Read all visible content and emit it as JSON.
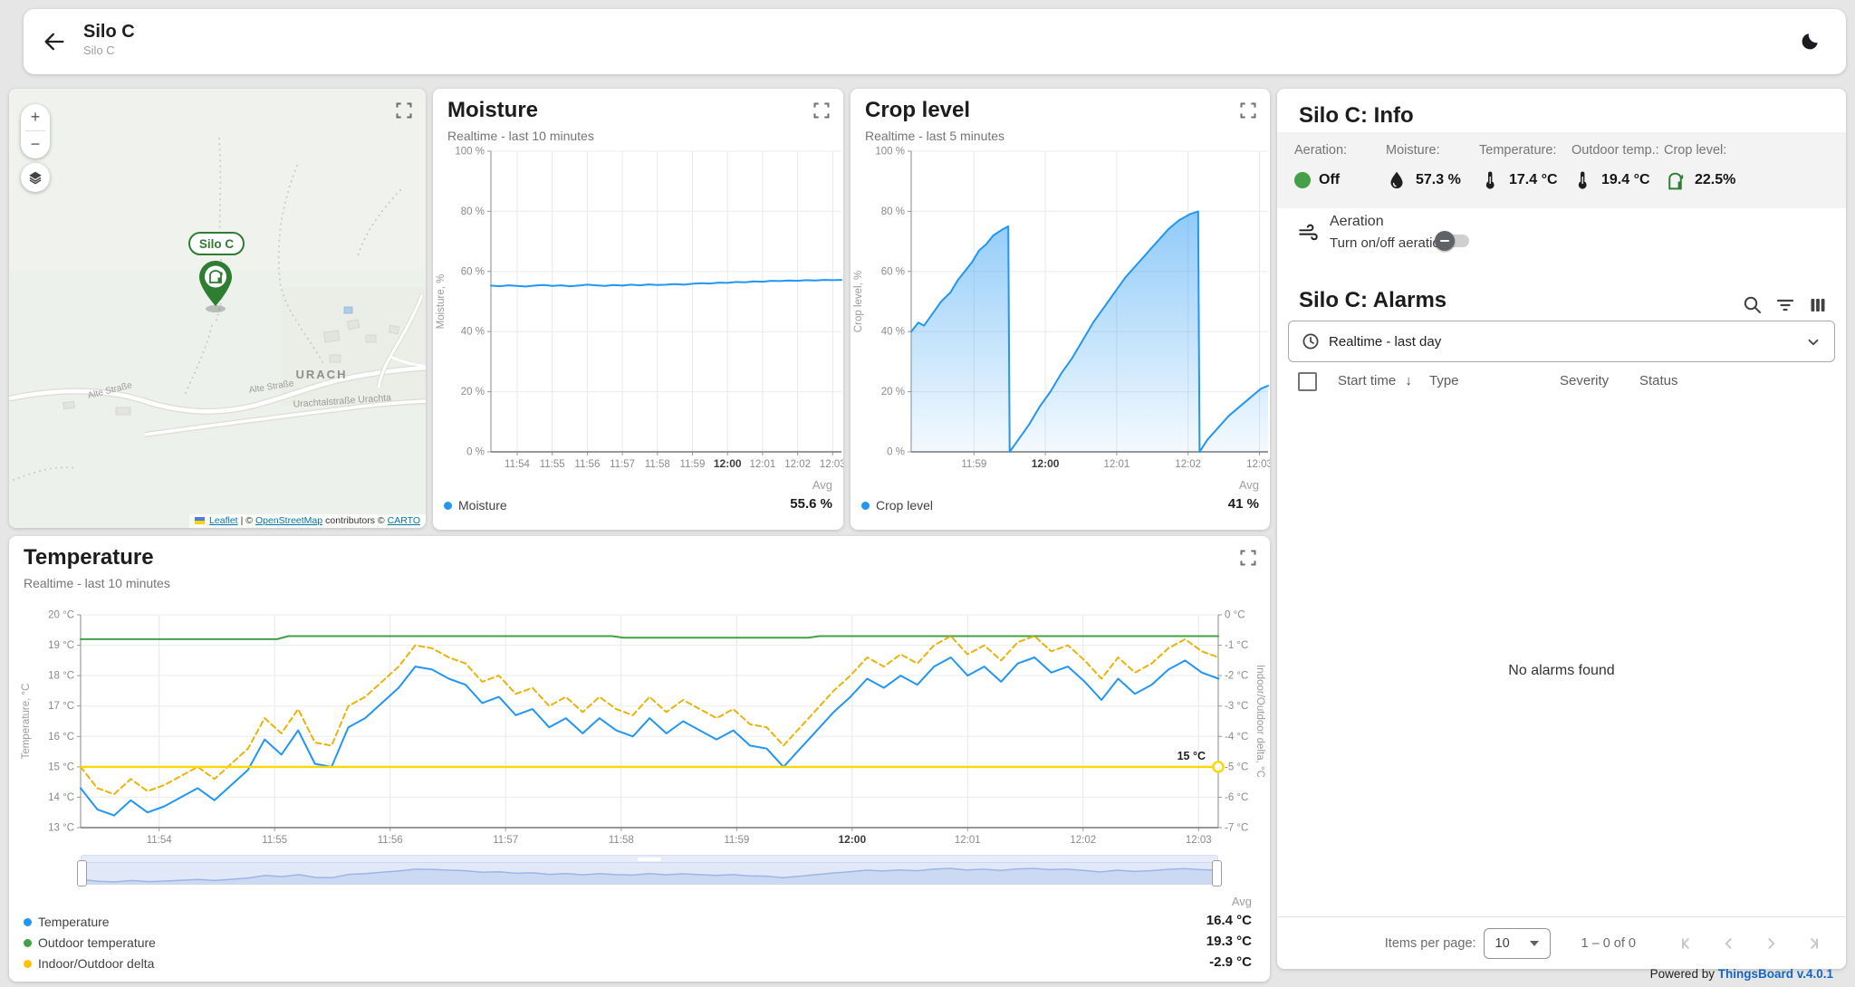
{
  "header": {
    "title": "Silo C",
    "subtitle": "Silo C"
  },
  "map": {
    "pill": "Silo C",
    "zoom_in": "+",
    "zoom_out": "−",
    "attribution": {
      "leaflet": "Leaflet",
      "sep1": " | © ",
      "osm": "OpenStreetMap",
      "sep2": " contributors © ",
      "carto": "CARTO"
    },
    "labels": [
      {
        "text": "URACH"
      },
      {
        "text": "Alte Straße"
      },
      {
        "text": "Alte Straße"
      },
      {
        "text": "Urachtalstraße  Urachta"
      }
    ]
  },
  "widgets": {
    "moisture": {
      "title": "Moisture",
      "subtitle": "Realtime - last 10 minutes"
    },
    "crop": {
      "title": "Crop level",
      "subtitle": "Realtime - last 5 minutes"
    },
    "temperature": {
      "title": "Temperature",
      "subtitle": "Realtime - last 10 minutes"
    }
  },
  "info": {
    "title": "Silo C: Info",
    "items": [
      {
        "label": "Aeration:",
        "value": "Off"
      },
      {
        "label": "Moisture:",
        "value": "57.3 %"
      },
      {
        "label": "Temperature:",
        "value": "17.4 °C"
      },
      {
        "label": "Outdoor temp.:",
        "value": "19.4 °C"
      },
      {
        "label": "Crop level:",
        "value": "22.5%"
      }
    ],
    "aeration": {
      "title": "Aeration",
      "control_label": "Turn on/off aeration"
    }
  },
  "alarms": {
    "title": "Silo C: Alarms",
    "timewindow": "Realtime - last day",
    "columns": [
      "Start time",
      "Type",
      "Severity",
      "Status"
    ],
    "sort_arrow": "↓",
    "empty": "No alarms found",
    "pagination": {
      "label": "Items per page:",
      "size": "10",
      "range": "1 – 0 of 0"
    }
  },
  "footer": {
    "powered": "Powered by ",
    "link": "ThingsBoard v.4.0.1"
  },
  "chart_data": [
    {
      "id": "moisture",
      "type": "line",
      "title": "Moisture",
      "x_range": [
        0,
        10
      ],
      "y_range": [
        0,
        100
      ],
      "x_ticks": [
        {
          "v": 0.75,
          "label": "11:54"
        },
        {
          "v": 1.75,
          "label": "11:55"
        },
        {
          "v": 2.75,
          "label": "11:56"
        },
        {
          "v": 3.75,
          "label": "11:57"
        },
        {
          "v": 4.75,
          "label": "11:58"
        },
        {
          "v": 5.75,
          "label": "11:59"
        },
        {
          "v": 6.75,
          "label": "12:00",
          "bold": true
        },
        {
          "v": 7.75,
          "label": "12:01"
        },
        {
          "v": 8.75,
          "label": "12:02"
        },
        {
          "v": 9.75,
          "label": "12:03"
        }
      ],
      "y_ticks": [
        {
          "v": 0,
          "label": "0 %"
        },
        {
          "v": 20,
          "label": "20 %"
        },
        {
          "v": 40,
          "label": "40 %"
        },
        {
          "v": 60,
          "label": "60 %"
        },
        {
          "v": 80,
          "label": "80 %"
        },
        {
          "v": 100,
          "label": "100 %"
        }
      ],
      "y_title": "Moisture, %",
      "series": [
        {
          "name": "Moisture",
          "color": "#2196f3",
          "width": 2,
          "x0": 0,
          "dx": 0.25,
          "values": [
            55.3,
            55.1,
            55.4,
            55.2,
            55.0,
            55.3,
            55.5,
            55.2,
            55.4,
            55.1,
            55.3,
            55.6,
            55.4,
            55.2,
            55.5,
            55.3,
            55.6,
            55.4,
            55.7,
            55.5,
            55.6,
            55.8,
            55.6,
            55.9,
            56.1,
            56.0,
            56.3,
            56.2,
            56.5,
            56.4,
            56.7,
            56.6,
            56.9,
            56.8,
            57.0,
            56.9,
            57.1,
            57.0,
            57.2,
            57.1,
            57.2
          ]
        }
      ],
      "legend": {
        "avg_label": "Avg",
        "items": [
          {
            "name": "Moisture",
            "color": "#2196f3",
            "avg": "55.6 %"
          }
        ]
      }
    },
    {
      "id": "crop",
      "type": "area",
      "title": "Crop level",
      "x_range": [
        0,
        5
      ],
      "y_range": [
        0,
        100
      ],
      "x_ticks": [
        {
          "v": 0.88,
          "label": "11:59"
        },
        {
          "v": 1.88,
          "label": "12:00",
          "bold": true
        },
        {
          "v": 2.88,
          "label": "12:01"
        },
        {
          "v": 3.88,
          "label": "12:02"
        },
        {
          "v": 4.88,
          "label": "12:03"
        }
      ],
      "y_ticks": [
        {
          "v": 0,
          "label": "0 %"
        },
        {
          "v": 20,
          "label": "20 %"
        },
        {
          "v": 40,
          "label": "40 %"
        },
        {
          "v": 60,
          "label": "60 %"
        },
        {
          "v": 80,
          "label": "80 %"
        },
        {
          "v": 100,
          "label": "100 %"
        }
      ],
      "y_title": "Crop level, %",
      "series": [
        {
          "name": "Crop level",
          "color": "#2196f3",
          "width": 2,
          "area": true,
          "x": [
            0,
            0.1,
            0.18,
            0.3,
            0.42,
            0.55,
            0.65,
            0.75,
            0.85,
            0.95,
            1.05,
            1.15,
            1.28,
            1.36,
            1.38,
            1.5,
            1.65,
            1.8,
            1.95,
            2.1,
            2.25,
            2.4,
            2.55,
            2.7,
            2.85,
            3.0,
            3.15,
            3.3,
            3.45,
            3.6,
            3.75,
            3.9,
            4.02,
            4.04,
            4.15,
            4.3,
            4.45,
            4.6,
            4.75,
            4.9,
            5.0
          ],
          "values": [
            40,
            43,
            42,
            46,
            50,
            53,
            57,
            60,
            63,
            67,
            69,
            72,
            74,
            75,
            0,
            4,
            9,
            15,
            20,
            26,
            31,
            37,
            43,
            48,
            53,
            58,
            62,
            66,
            70,
            74,
            77,
            79,
            80,
            0,
            4,
            8,
            12,
            15,
            18,
            21,
            22
          ]
        }
      ],
      "legend": {
        "avg_label": "Avg",
        "items": [
          {
            "name": "Crop level",
            "color": "#2196f3",
            "avg": "41 %"
          }
        ]
      }
    },
    {
      "id": "temperature",
      "type": "line",
      "title": "Temperature",
      "x_range": [
        0,
        9.85
      ],
      "y_range": [
        13,
        20
      ],
      "y2_range": [
        -7,
        0
      ],
      "x_ticks": [
        {
          "v": 0.68,
          "label": "11:54"
        },
        {
          "v": 1.68,
          "label": "11:55"
        },
        {
          "v": 2.68,
          "label": "11:56"
        },
        {
          "v": 3.68,
          "label": "11:57"
        },
        {
          "v": 4.68,
          "label": "11:58"
        },
        {
          "v": 5.68,
          "label": "11:59"
        },
        {
          "v": 6.68,
          "label": "12:00",
          "bold": true
        },
        {
          "v": 7.68,
          "label": "12:01"
        },
        {
          "v": 8.68,
          "label": "12:02"
        },
        {
          "v": 9.68,
          "label": "12:03"
        }
      ],
      "y_ticks": [
        {
          "v": 13,
          "label": "13 °C"
        },
        {
          "v": 14,
          "label": "14 °C"
        },
        {
          "v": 15,
          "label": "15 °C"
        },
        {
          "v": 16,
          "label": "16 °C"
        },
        {
          "v": 17,
          "label": "17 °C"
        },
        {
          "v": 18,
          "label": "18 °C"
        },
        {
          "v": 19,
          "label": "19 °C"
        },
        {
          "v": 20,
          "label": "20 °C"
        }
      ],
      "y2_ticks": [
        {
          "v": -7,
          "label": "-7 °C"
        },
        {
          "v": -6,
          "label": "-6 °C"
        },
        {
          "v": -5,
          "label": "-5 °C"
        },
        {
          "v": -4,
          "label": "-4 °C"
        },
        {
          "v": -3,
          "label": "-3 °C"
        },
        {
          "v": -2,
          "label": "-2 °C"
        },
        {
          "v": -1,
          "label": "-1 °C"
        },
        {
          "v": 0,
          "label": "0 °C"
        }
      ],
      "y_title": "Temperature, °C",
      "y2_title": "Indoor/Outdoor delta, °C",
      "threshold": {
        "v": 15,
        "label": "15 °C",
        "color": "#ffd600"
      },
      "series": [
        {
          "name": "Temperature",
          "color": "#2196f3",
          "width": 2,
          "x0": 0,
          "dx": 0.1449,
          "values": [
            14.3,
            13.6,
            13.4,
            13.9,
            13.5,
            13.7,
            14.0,
            14.3,
            13.9,
            14.4,
            14.9,
            15.9,
            15.4,
            16.2,
            15.1,
            15.0,
            16.3,
            16.6,
            17.1,
            17.6,
            18.3,
            18.2,
            17.9,
            17.7,
            17.1,
            17.3,
            16.7,
            16.9,
            16.3,
            16.6,
            16.1,
            16.6,
            16.2,
            16.0,
            16.6,
            16.1,
            16.5,
            16.2,
            15.9,
            16.2,
            15.7,
            15.6,
            15.0,
            15.6,
            16.2,
            16.8,
            17.3,
            17.9,
            17.6,
            18.0,
            17.7,
            18.3,
            18.6,
            18.0,
            18.3,
            17.8,
            18.4,
            18.6,
            18.1,
            18.3,
            17.8,
            17.2,
            17.9,
            17.4,
            17.7,
            18.2,
            18.5,
            18.1,
            17.9
          ]
        },
        {
          "name": "Outdoor temperature",
          "color": "#43a047",
          "width": 2,
          "x": [
            0,
            1.7,
            1.8,
            4.6,
            4.7,
            6.3,
            6.4,
            9.85
          ],
          "values": [
            19.2,
            19.2,
            19.3,
            19.3,
            19.25,
            19.25,
            19.3,
            19.3
          ]
        },
        {
          "name": "Indoor/Outdoor delta",
          "color": "#eab308",
          "width": 2,
          "dash": "6 4",
          "axis": "y2",
          "x0": 0,
          "dx": 0.1449,
          "values": [
            -5.0,
            -5.7,
            -5.9,
            -5.4,
            -5.8,
            -5.6,
            -5.3,
            -5.0,
            -5.4,
            -4.9,
            -4.4,
            -3.4,
            -3.9,
            -3.1,
            -4.2,
            -4.3,
            -3.0,
            -2.7,
            -2.2,
            -1.7,
            -1.0,
            -1.1,
            -1.4,
            -1.6,
            -2.2,
            -2.0,
            -2.6,
            -2.4,
            -3.0,
            -2.7,
            -3.2,
            -2.7,
            -3.1,
            -3.3,
            -2.7,
            -3.2,
            -2.8,
            -3.1,
            -3.4,
            -3.1,
            -3.6,
            -3.7,
            -4.3,
            -3.7,
            -3.1,
            -2.5,
            -2.0,
            -1.4,
            -1.7,
            -1.3,
            -1.6,
            -1.0,
            -0.7,
            -1.3,
            -1.0,
            -1.5,
            -0.9,
            -0.7,
            -1.2,
            -1.0,
            -1.5,
            -2.1,
            -1.4,
            -1.9,
            -1.6,
            -1.1,
            -0.8,
            -1.2,
            -1.4
          ]
        }
      ],
      "legend": {
        "avg_label": "Avg",
        "items": [
          {
            "name": "Temperature",
            "color": "#2196f3",
            "avg": "16.4 °C"
          },
          {
            "name": "Outdoor temperature",
            "color": "#43a047",
            "avg": "19.3 °C"
          },
          {
            "name": "Indoor/Outdoor delta",
            "color": "#ffc107",
            "avg": "-2.9 °C"
          }
        ]
      }
    }
  ]
}
